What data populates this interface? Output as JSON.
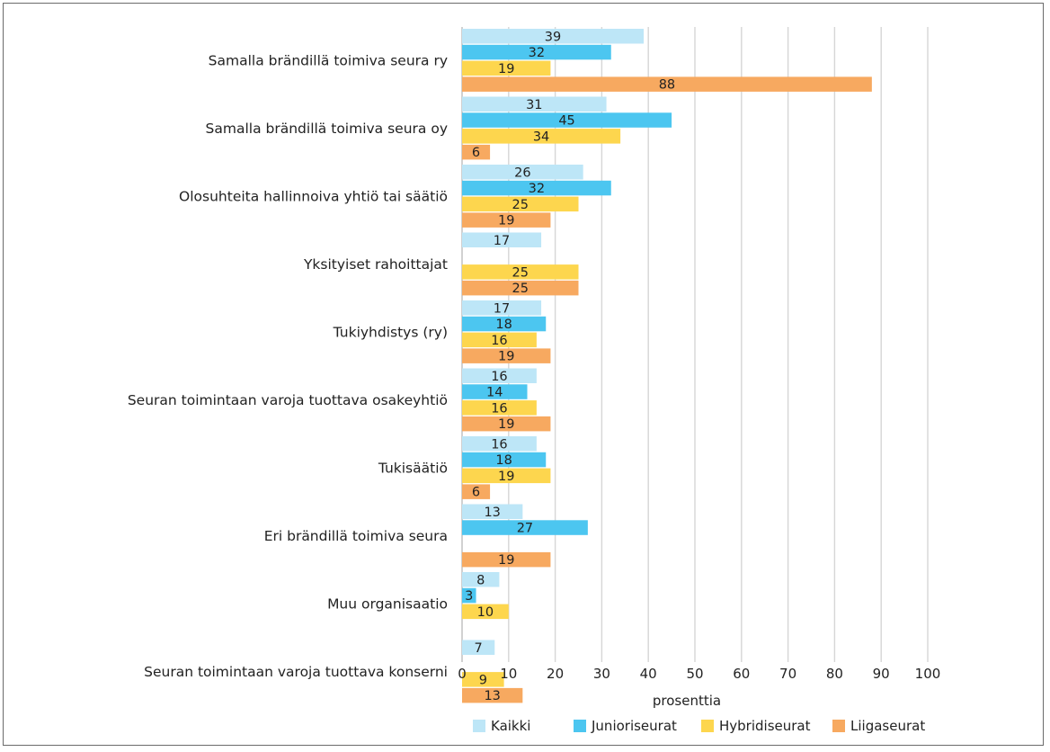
{
  "chart_data": {
    "type": "bar",
    "orientation": "horizontal",
    "categories": [
      "Samalla brändillä toimiva seura ry",
      "Samalla brändillä toimiva seura oy",
      "Olosuhteita hallinnoiva yhtiö tai säätiö",
      "Yksityiset rahoittajat",
      "Tukiyhdistys (ry)",
      "Seuran toimintaan varoja tuottava osakeyhtiö",
      "Tukisäätiö",
      "Eri brändillä toimiva seura",
      "Muu organisaatio",
      "Seuran toimintaan varoja tuottava konserni"
    ],
    "series": [
      {
        "name": "Kaikki",
        "color": "#bde6f7",
        "values": [
          39,
          31,
          26,
          17,
          17,
          16,
          16,
          13,
          8,
          7
        ]
      },
      {
        "name": "Junioriseurat",
        "color": "#4cc6f0",
        "values": [
          32,
          45,
          32,
          null,
          18,
          14,
          18,
          27,
          3,
          null
        ]
      },
      {
        "name": "Hybridiseurat",
        "color": "#fdd64e",
        "values": [
          19,
          34,
          25,
          25,
          16,
          16,
          19,
          null,
          10,
          9
        ]
      },
      {
        "name": "Liigaseurat",
        "color": "#f7a960",
        "values": [
          88,
          6,
          19,
          25,
          19,
          19,
          6,
          19,
          null,
          13
        ]
      }
    ],
    "xlabel": "prosenttia",
    "xlim": [
      0,
      100
    ],
    "xticks": [
      0,
      10,
      20,
      30,
      40,
      50,
      60,
      70,
      80,
      90,
      100
    ],
    "grid": true,
    "legend_position": "bottom"
  }
}
